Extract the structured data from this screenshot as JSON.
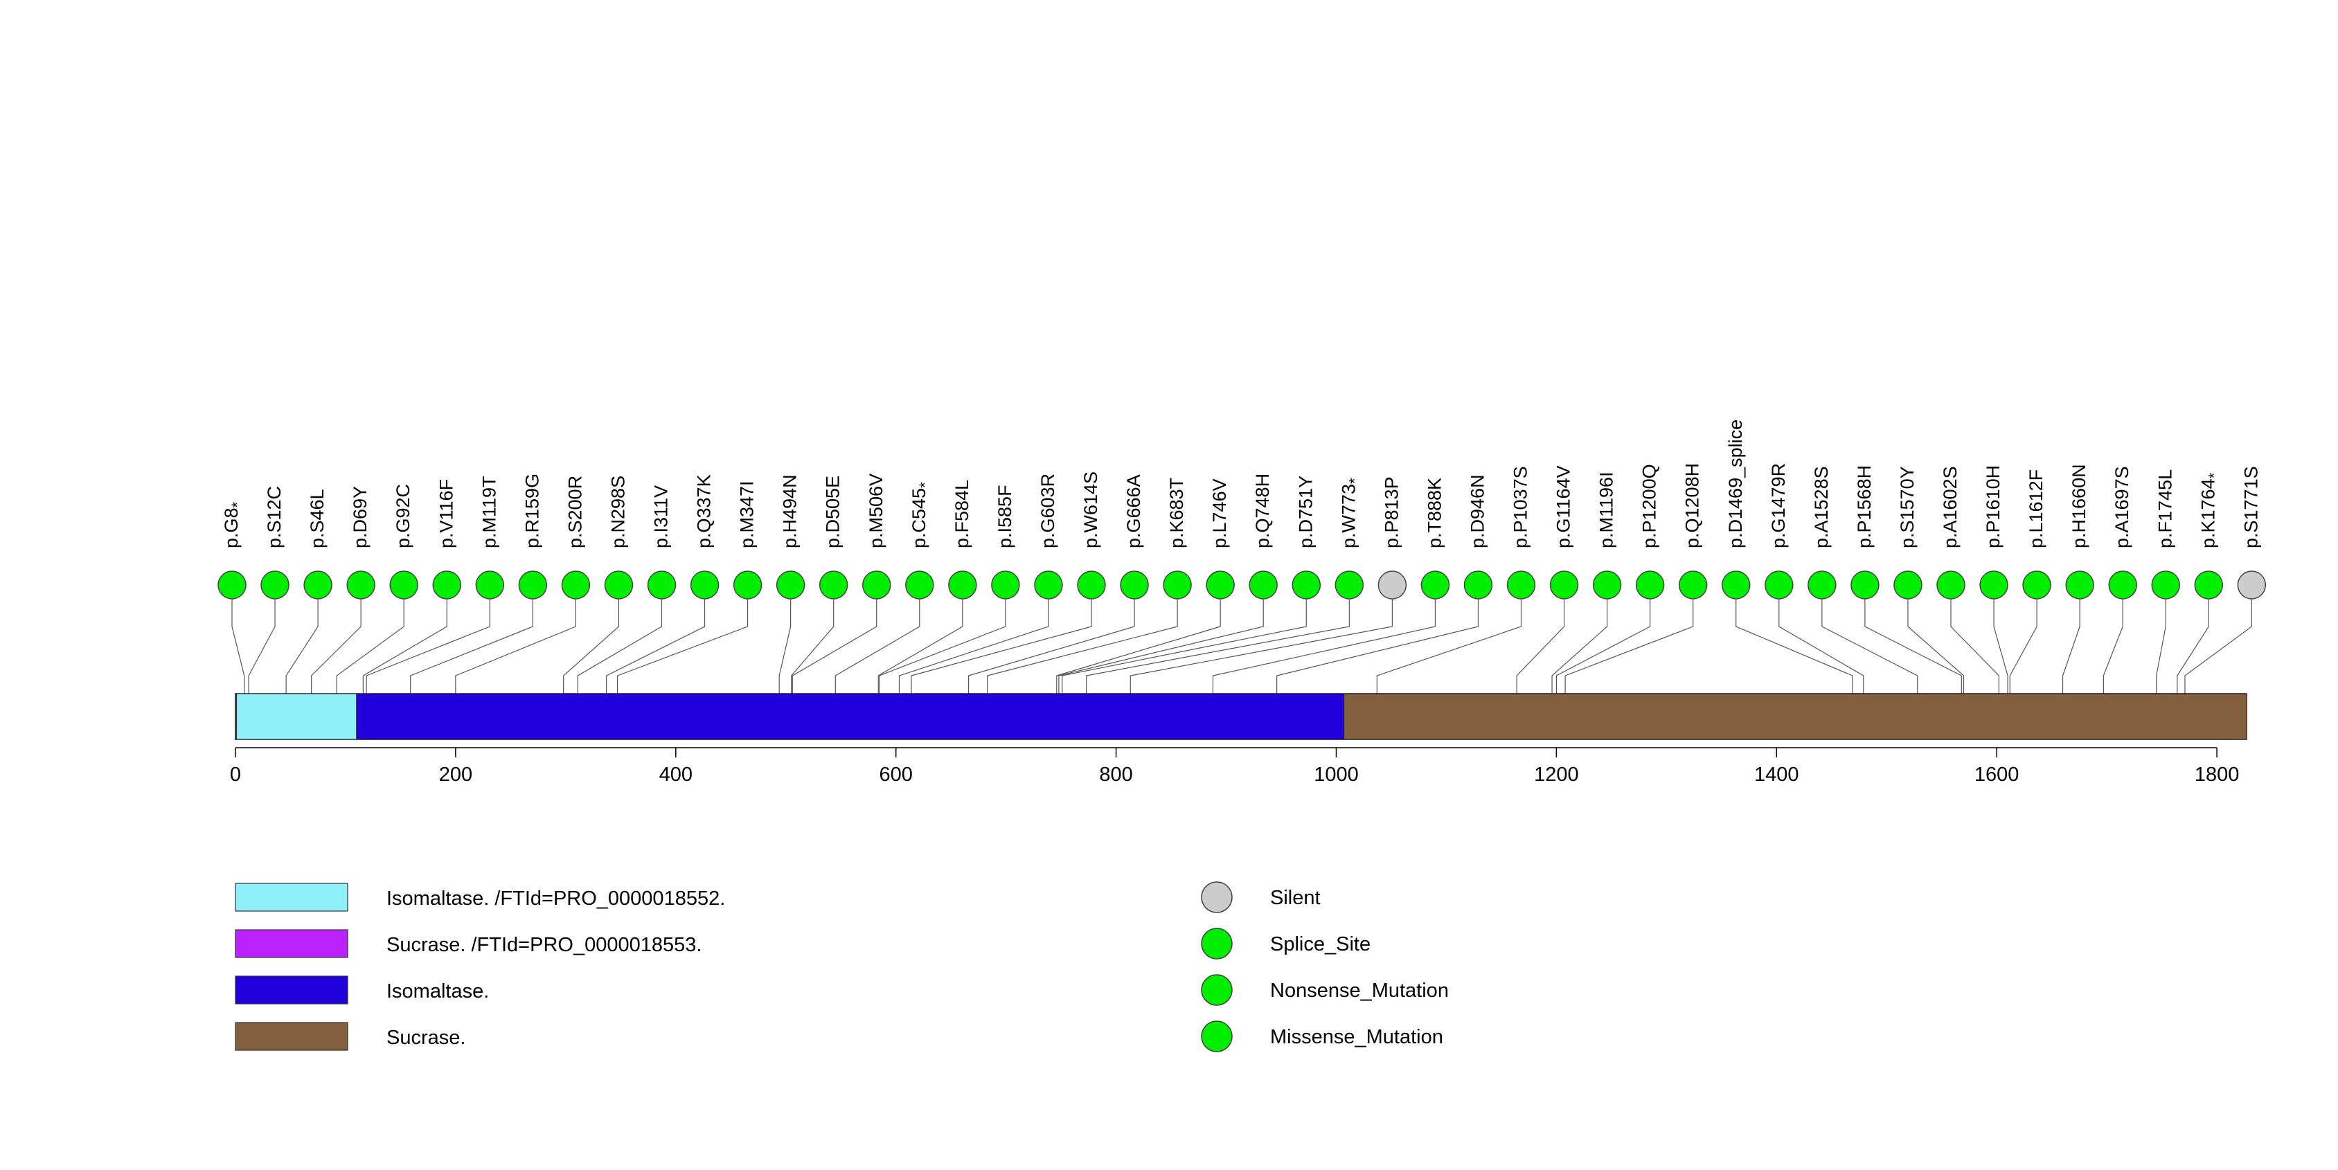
{
  "chart_data": {
    "type": "lollipop",
    "title": "",
    "xlabel": "",
    "ylabel": "",
    "xlim": [
      0,
      1827
    ],
    "x_ticks": [
      0,
      200,
      400,
      600,
      800,
      1000,
      1200,
      1400,
      1600,
      1800
    ],
    "protein_length": 1827,
    "domains": [
      {
        "name": "Isomaltase. /FTId=PRO_0000018552.",
        "start": 1,
        "end": 110,
        "color": "#8ff0fa"
      },
      {
        "name": "Isomaltase.",
        "start": 110,
        "end": 1007,
        "color": "#2200dd"
      },
      {
        "name": "Sucrase.",
        "start": 1007,
        "end": 1827,
        "color": "#835f3d"
      }
    ],
    "mutations": [
      {
        "label": "p.G8",
        "pos": 8,
        "nonsense": true,
        "type": "Nonsense_Mutation"
      },
      {
        "label": "p.S12C",
        "pos": 12,
        "nonsense": false,
        "type": "Missense_Mutation"
      },
      {
        "label": "p.S46L",
        "pos": 46,
        "nonsense": false,
        "type": "Missense_Mutation"
      },
      {
        "label": "p.D69Y",
        "pos": 69,
        "nonsense": false,
        "type": "Missense_Mutation"
      },
      {
        "label": "p.G92C",
        "pos": 92,
        "nonsense": false,
        "type": "Missense_Mutation"
      },
      {
        "label": "p.V116F",
        "pos": 116,
        "nonsense": false,
        "type": "Missense_Mutation"
      },
      {
        "label": "p.M119T",
        "pos": 119,
        "nonsense": false,
        "type": "Missense_Mutation"
      },
      {
        "label": "p.R159G",
        "pos": 159,
        "nonsense": false,
        "type": "Missense_Mutation"
      },
      {
        "label": "p.S200R",
        "pos": 200,
        "nonsense": false,
        "type": "Missense_Mutation"
      },
      {
        "label": "p.N298S",
        "pos": 298,
        "nonsense": false,
        "type": "Missense_Mutation"
      },
      {
        "label": "p.I311V",
        "pos": 311,
        "nonsense": false,
        "type": "Missense_Mutation"
      },
      {
        "label": "p.Q337K",
        "pos": 337,
        "nonsense": false,
        "type": "Missense_Mutation"
      },
      {
        "label": "p.M347I",
        "pos": 347,
        "nonsense": false,
        "type": "Missense_Mutation"
      },
      {
        "label": "p.H494N",
        "pos": 494,
        "nonsense": false,
        "type": "Missense_Mutation"
      },
      {
        "label": "p.D505E",
        "pos": 505,
        "nonsense": false,
        "type": "Missense_Mutation"
      },
      {
        "label": "p.M506V",
        "pos": 506,
        "nonsense": false,
        "type": "Missense_Mutation"
      },
      {
        "label": "p.C545",
        "pos": 545,
        "nonsense": true,
        "type": "Nonsense_Mutation"
      },
      {
        "label": "p.F584L",
        "pos": 584,
        "nonsense": false,
        "type": "Missense_Mutation"
      },
      {
        "label": "p.I585F",
        "pos": 585,
        "nonsense": false,
        "type": "Missense_Mutation"
      },
      {
        "label": "p.G603R",
        "pos": 603,
        "nonsense": false,
        "type": "Missense_Mutation"
      },
      {
        "label": "p.W614S",
        "pos": 614,
        "nonsense": false,
        "type": "Missense_Mutation"
      },
      {
        "label": "p.G666A",
        "pos": 666,
        "nonsense": false,
        "type": "Missense_Mutation"
      },
      {
        "label": "p.K683T",
        "pos": 683,
        "nonsense": false,
        "type": "Missense_Mutation"
      },
      {
        "label": "p.L746V",
        "pos": 746,
        "nonsense": false,
        "type": "Missense_Mutation"
      },
      {
        "label": "p.Q748H",
        "pos": 748,
        "nonsense": false,
        "type": "Missense_Mutation"
      },
      {
        "label": "p.D751Y",
        "pos": 751,
        "nonsense": false,
        "type": "Missense_Mutation"
      },
      {
        "label": "p.W773",
        "pos": 773,
        "nonsense": true,
        "type": "Nonsense_Mutation"
      },
      {
        "label": "p.P813P",
        "pos": 813,
        "nonsense": false,
        "type": "Silent"
      },
      {
        "label": "p.T888K",
        "pos": 888,
        "nonsense": false,
        "type": "Missense_Mutation"
      },
      {
        "label": "p.D946N",
        "pos": 946,
        "nonsense": false,
        "type": "Missense_Mutation"
      },
      {
        "label": "p.P1037S",
        "pos": 1037,
        "nonsense": false,
        "type": "Missense_Mutation"
      },
      {
        "label": "p.G1164V",
        "pos": 1164,
        "nonsense": false,
        "type": "Missense_Mutation"
      },
      {
        "label": "p.M1196I",
        "pos": 1196,
        "nonsense": false,
        "type": "Missense_Mutation"
      },
      {
        "label": "p.P1200Q",
        "pos": 1200,
        "nonsense": false,
        "type": "Missense_Mutation"
      },
      {
        "label": "p.Q1208H",
        "pos": 1208,
        "nonsense": false,
        "type": "Missense_Mutation"
      },
      {
        "label": "p.D1469_splice",
        "pos": 1469,
        "nonsense": false,
        "type": "Splice_Site"
      },
      {
        "label": "p.G1479R",
        "pos": 1479,
        "nonsense": false,
        "type": "Missense_Mutation"
      },
      {
        "label": "p.A1528S",
        "pos": 1528,
        "nonsense": false,
        "type": "Missense_Mutation"
      },
      {
        "label": "p.P1568H",
        "pos": 1568,
        "nonsense": false,
        "type": "Missense_Mutation"
      },
      {
        "label": "p.S1570Y",
        "pos": 1570,
        "nonsense": false,
        "type": "Missense_Mutation"
      },
      {
        "label": "p.A1602S",
        "pos": 1602,
        "nonsense": false,
        "type": "Missense_Mutation"
      },
      {
        "label": "p.P1610H",
        "pos": 1610,
        "nonsense": false,
        "type": "Missense_Mutation"
      },
      {
        "label": "p.L1612F",
        "pos": 1612,
        "nonsense": false,
        "type": "Missense_Mutation"
      },
      {
        "label": "p.H1660N",
        "pos": 1660,
        "nonsense": false,
        "type": "Missense_Mutation"
      },
      {
        "label": "p.A1697S",
        "pos": 1697,
        "nonsense": false,
        "type": "Missense_Mutation"
      },
      {
        "label": "p.F1745L",
        "pos": 1745,
        "nonsense": false,
        "type": "Missense_Mutation"
      },
      {
        "label": "p.K1764",
        "pos": 1764,
        "nonsense": true,
        "type": "Nonsense_Mutation"
      },
      {
        "label": "p.S1771S",
        "pos": 1771,
        "nonsense": false,
        "type": "Silent"
      }
    ],
    "nonsense_marker": "*",
    "legend_domains": [
      {
        "label": "Isomaltase. /FTId=PRO_0000018552.",
        "color": "#8ff0fa"
      },
      {
        "label": "Sucrase. /FTId=PRO_0000018553.",
        "color": "#bb22ff"
      },
      {
        "label": "Isomaltase.",
        "color": "#2200dd"
      },
      {
        "label": "Sucrase.",
        "color": "#835f3d"
      }
    ],
    "legend_types": [
      {
        "label": "Silent",
        "color": "#cccccc"
      },
      {
        "label": "Splice_Site",
        "color": "#00ee00"
      },
      {
        "label": "Nonsense_Mutation",
        "color": "#00ee00"
      },
      {
        "label": "Missense_Mutation",
        "color": "#00ee00"
      }
    ],
    "type_colors": {
      "Silent": "#cccccc",
      "Splice_Site": "#00ee00",
      "Nonsense_Mutation": "#00ee00",
      "Missense_Mutation": "#00ee00"
    }
  }
}
